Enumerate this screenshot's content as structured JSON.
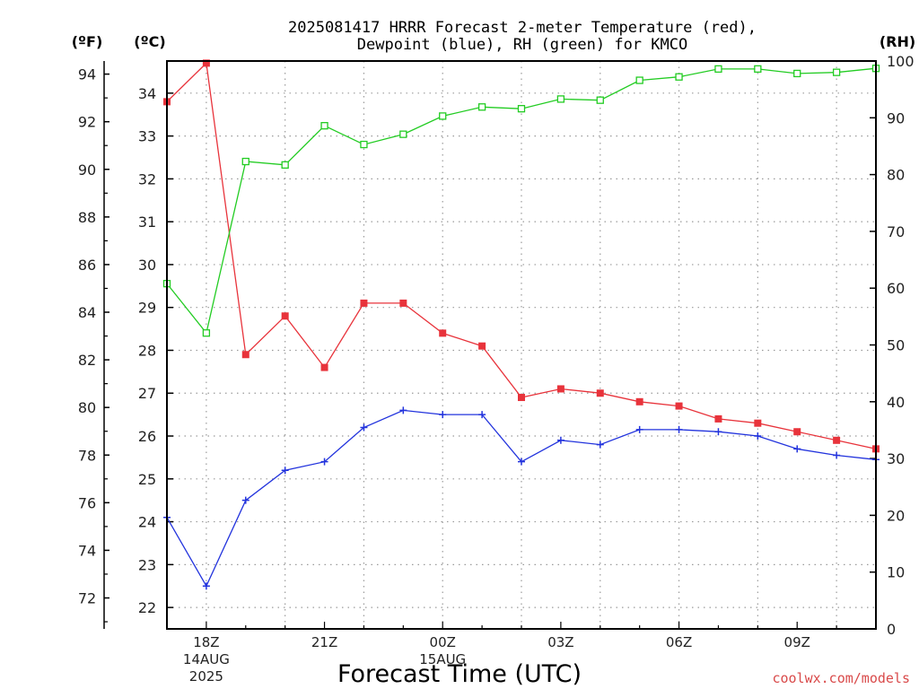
{
  "title_lines": [
    "2025081417 HRRR Forecast 2-meter Temperature (red),",
    "Dewpoint (blue), RH (green) for KMCO"
  ],
  "credit": "coolwx.com/models",
  "chart_data": {
    "type": "line",
    "xlabel": "Forecast Time (UTC)",
    "x": [
      0,
      1,
      2,
      3,
      4,
      5,
      6,
      7,
      8,
      9,
      10,
      11,
      12,
      13,
      14,
      15,
      16,
      17,
      18
    ],
    "x_start": "2025-08-14 17Z",
    "x_tick_labels": [
      {
        "x": 1,
        "lines": [
          "18Z",
          "14AUG",
          "2025"
        ]
      },
      {
        "x": 4,
        "lines": [
          "21Z"
        ]
      },
      {
        "x": 7,
        "lines": [
          "00Z",
          "15AUG"
        ]
      },
      {
        "x": 10,
        "lines": [
          "03Z"
        ]
      },
      {
        "x": 13,
        "lines": [
          "06Z"
        ]
      },
      {
        "x": 16,
        "lines": [
          "09Z"
        ]
      }
    ],
    "axes": {
      "fahrenheit": {
        "unit_label": "(ºF)",
        "ticks": [
          72,
          74,
          76,
          78,
          80,
          82,
          84,
          86,
          88,
          90,
          92,
          94
        ]
      },
      "celsius": {
        "unit_label": "(ºC)",
        "ticks": [
          22,
          23,
          24,
          25,
          26,
          27,
          28,
          29,
          30,
          31,
          32,
          33,
          34
        ],
        "ylim": [
          21.5,
          34.75
        ]
      },
      "rh": {
        "unit_label": "(RH)",
        "ticks": [
          0,
          10,
          20,
          30,
          40,
          50,
          60,
          70,
          80,
          90,
          100
        ],
        "ylim": [
          0,
          100
        ]
      }
    },
    "grid": true,
    "series": [
      {
        "name": "Temperature",
        "color": "#e8333b",
        "marker": "filled-square",
        "axis": "celsius",
        "values": [
          33.8,
          34.7,
          27.9,
          28.8,
          27.6,
          29.1,
          29.1,
          28.4,
          28.1,
          26.9,
          27.1,
          27.0,
          26.8,
          26.7,
          26.4,
          26.3,
          26.1,
          25.9,
          25.7
        ]
      },
      {
        "name": "Dewpoint",
        "color": "#2233dd",
        "marker": "plus",
        "axis": "celsius",
        "values": [
          24.1,
          22.5,
          24.5,
          25.2,
          25.4,
          26.2,
          26.6,
          26.5,
          26.5,
          25.4,
          25.9,
          25.8,
          26.15,
          26.15,
          26.1,
          26.0,
          25.7,
          25.55,
          25.45
        ]
      },
      {
        "name": "RH",
        "color": "#22cc22",
        "marker": "open-square",
        "axis": "rh",
        "values": [
          60.8,
          52.1,
          82.3,
          81.7,
          88.6,
          85.3,
          87.1,
          90.3,
          91.9,
          91.6,
          93.3,
          93.1,
          96.6,
          97.2,
          98.6,
          98.6,
          97.8,
          98.0,
          98.7
        ]
      }
    ]
  }
}
